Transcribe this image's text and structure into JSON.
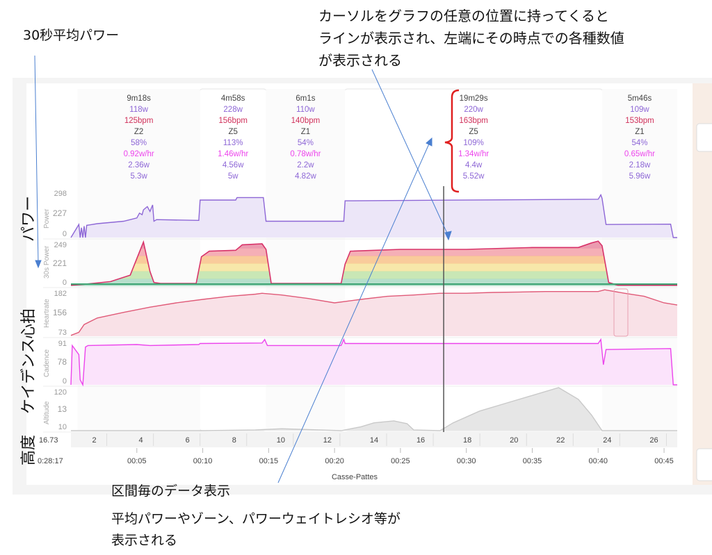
{
  "annotations": {
    "top_note": [
      "カーソルをグラフの任意の位置に持ってくると",
      "ラインが表示され、左端にその時点での各種数値",
      "が表示される"
    ],
    "avg30_note": "30秒平均パワー",
    "side_power": "パワー",
    "side_heart": "心拍",
    "side_cadence": "ケイデンス",
    "side_altitude": "高度",
    "bottom_note": [
      "区間毎のデータ表示",
      "平均パワーやゾーン、パワーウェイトレシオ等が",
      "表示される"
    ]
  },
  "chart_data": {
    "type": "line",
    "x_range_min": [
      0,
      46
    ],
    "x_axis_ticks": [
      "00:05",
      "00:10",
      "00:15",
      "00:20",
      "00:25",
      "00:30",
      "00:35",
      "00:40",
      "00:45"
    ],
    "x_axis_label": "Casse-Pattes",
    "cursor": {
      "time": "0:28:17",
      "distance": "16.73",
      "x_min": 28.28
    },
    "colors": {
      "power": "#8d66d6",
      "heart": "#e05a78",
      "cadence": "#ec44ec",
      "altitude": "#c9c9c9",
      "avg_red": "#d8336a",
      "avg_green": "#3aa372"
    },
    "intervals": [
      {
        "start_min": 0.5,
        "end_min": 9.8,
        "duration": "9m18s",
        "avg_power": "118w",
        "avg_hr": "125bpm",
        "zone": "Z2",
        "pct": "58%",
        "wkg": "0.92w/hr",
        "v1": "2.36w",
        "v2": "5.3w",
        "highlight": false
      },
      {
        "start_min": 9.8,
        "end_min": 14.8,
        "duration": "4m58s",
        "avg_power": "228w",
        "avg_hr": "156bpm",
        "zone": "Z5",
        "pct": "113%",
        "wkg": "1.46w/hr",
        "v1": "4.56w",
        "v2": "5w",
        "highlight": true
      },
      {
        "start_min": 14.8,
        "end_min": 20.8,
        "duration": "6m1s",
        "avg_power": "110w",
        "avg_hr": "140bpm",
        "zone": "Z1",
        "pct": "54%",
        "wkg": "0.78w/hr",
        "v1": "2.2w",
        "v2": "4.82w",
        "highlight": false
      },
      {
        "start_min": 20.8,
        "end_min": 40.3,
        "duration": "19m29s",
        "avg_power": "220w",
        "avg_hr": "163bpm",
        "zone": "Z5",
        "pct": "109%",
        "wkg": "1.34w/hr",
        "v1": "4.4w",
        "v2": "5.52w",
        "highlight": true
      },
      {
        "start_min": 40.3,
        "end_min": 46.0,
        "duration": "5m46s",
        "avg_power": "109w",
        "avg_hr": "153bpm",
        "zone": "Z1",
        "pct": "54%",
        "wkg": "0.65w/hr",
        "v1": "2.18w",
        "v2": "5.96w",
        "highlight": false
      }
    ],
    "panels": [
      {
        "key": "power",
        "title": "Power",
        "ticks": [
          "298",
          "227",
          "0"
        ],
        "ylim": [
          0,
          298
        ],
        "cursor_value": "227",
        "x": [
          0.0,
          0.6,
          0.7,
          0.8,
          0.9,
          1.0,
          1.1,
          1.2,
          2.0,
          4.0,
          5.0,
          5.2,
          5.4,
          5.5,
          5.8,
          6.0,
          6.2,
          6.3,
          6.5,
          9.7,
          9.8,
          12.5,
          12.6,
          14.6,
          14.8,
          20.7,
          20.8,
          40.0,
          40.2,
          40.3,
          40.6,
          45.5,
          45.7,
          46.0
        ],
        "y": [
          0,
          80,
          0,
          60,
          0,
          70,
          0,
          75,
          85,
          100,
          120,
          150,
          140,
          170,
          190,
          160,
          200,
          100,
          110,
          105,
          230,
          230,
          245,
          245,
          100,
          100,
          225,
          235,
          262,
          240,
          80,
          82,
          0,
          0
        ]
      },
      {
        "key": "avg30",
        "title": "30s Power",
        "ticks": [
          "249",
          "221",
          "0"
        ],
        "ylim": [
          0,
          249
        ],
        "cursor_value": "221",
        "x": [
          0.0,
          1.0,
          3.0,
          4.5,
          5.0,
          5.5,
          6.0,
          6.3,
          6.8,
          9.5,
          9.9,
          10.5,
          12.5,
          13.0,
          14.5,
          14.8,
          15.2,
          20.5,
          20.8,
          21.2,
          25.0,
          30.0,
          35.0,
          38.5,
          39.5,
          40.0,
          40.3,
          40.8,
          41.5,
          46.0
        ],
        "y": [
          5,
          10,
          25,
          60,
          150,
          240,
          80,
          20,
          15,
          15,
          160,
          190,
          195,
          225,
          230,
          200,
          15,
          15,
          120,
          190,
          200,
          200,
          210,
          210,
          235,
          245,
          220,
          20,
          5,
          5
        ]
      },
      {
        "key": "heart",
        "title": "Heartrate",
        "ticks": [
          "182",
          "156",
          "73"
        ],
        "ylim": [
          73,
          182
        ],
        "cursor_value": "156",
        "x": [
          0.0,
          0.6,
          1.0,
          2.0,
          4.0,
          6.0,
          8.0,
          10.0,
          12.0,
          14.0,
          14.5,
          16.0,
          18.0,
          20.0,
          22.0,
          24.0,
          26.0,
          28.0,
          30.0,
          32.0,
          34.0,
          36.0,
          38.0,
          40.0,
          40.5,
          42.0,
          43.5,
          45.0,
          46.0
        ],
        "y": [
          75,
          82,
          100,
          115,
          128,
          140,
          150,
          158,
          165,
          170,
          172,
          168,
          160,
          150,
          158,
          165,
          168,
          172,
          172,
          174,
          175,
          176,
          176,
          176,
          180,
          172,
          165,
          150,
          145
        ]
      },
      {
        "key": "cadence",
        "title": "Cadence",
        "ticks": [
          "91",
          "78",
          "0"
        ],
        "ylim": [
          0,
          91
        ],
        "cursor_value": "78",
        "x": [
          0.0,
          0.1,
          0.6,
          0.7,
          0.9,
          1.1,
          1.3,
          5.0,
          6.0,
          9.7,
          9.8,
          14.5,
          14.7,
          14.9,
          20.5,
          20.7,
          20.8,
          40.0,
          40.2,
          40.4,
          40.6,
          45.5,
          45.7,
          46.0
        ],
        "y": [
          0,
          78,
          60,
          10,
          0,
          75,
          78,
          80,
          78,
          80,
          82,
          83,
          90,
          78,
          78,
          90,
          82,
          82,
          90,
          40,
          70,
          72,
          0,
          0
        ]
      },
      {
        "key": "altitude",
        "title": "Altitude",
        "ticks": [
          "120",
          "13",
          "10"
        ],
        "ylim": [
          10,
          120
        ],
        "cursor_value": "13",
        "x": [
          0.0,
          10.0,
          14.0,
          16.0,
          20.5,
          22.0,
          23.0,
          24.5,
          25.5,
          26.0,
          28.0,
          29.0,
          31.0,
          33.0,
          35.0,
          37.0,
          38.5,
          39.5,
          40.3,
          42.0,
          46.0
        ],
        "y": [
          10,
          10,
          12,
          15,
          10,
          20,
          30,
          35,
          28,
          12,
          10,
          30,
          60,
          80,
          100,
          120,
          90,
          50,
          10,
          10,
          10
        ]
      }
    ],
    "distance_ticks": [
      "2",
      "4",
      "6",
      "8",
      "10",
      "12",
      "14",
      "16",
      "18",
      "20",
      "22",
      "24",
      "26"
    ]
  }
}
